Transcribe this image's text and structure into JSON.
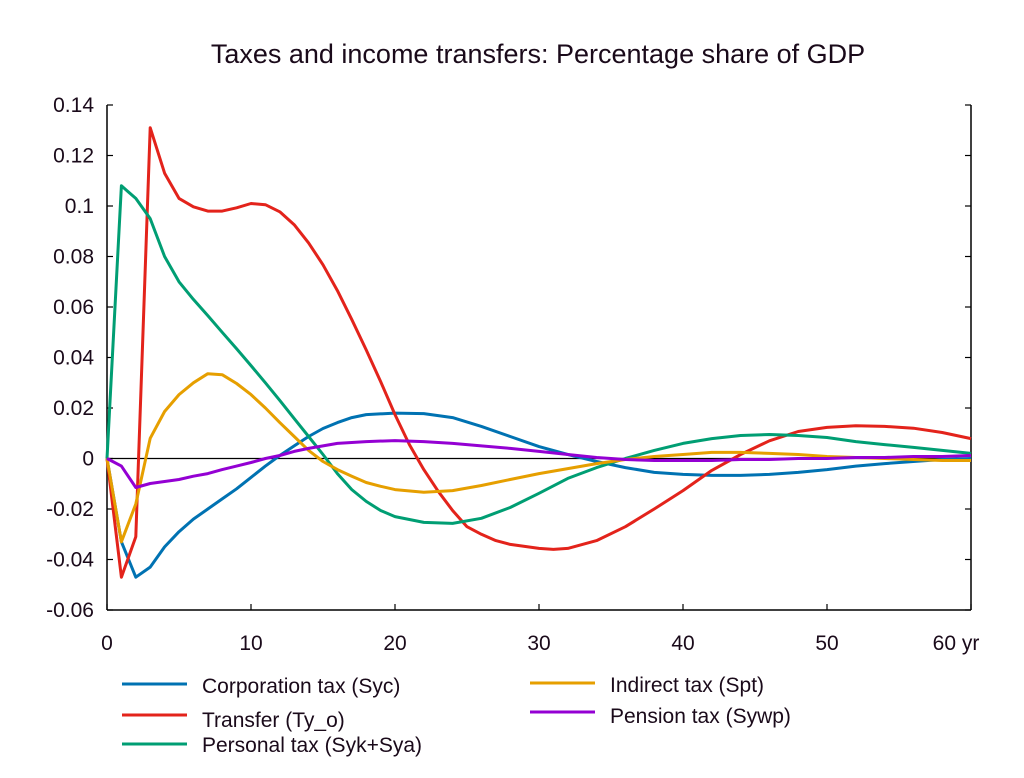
{
  "chart_data": {
    "type": "line",
    "title": "Taxes and income transfers: Percentage share of GDP",
    "xlabel": "",
    "ylabel": "",
    "xlim": [
      0,
      60
    ],
    "ylim": [
      -0.06,
      0.14
    ],
    "x_ticks": [
      0,
      10,
      20,
      30,
      40,
      50,
      60
    ],
    "x_tick_labels": [
      "0",
      "10",
      "20",
      "30",
      "40",
      "50",
      "60 yr"
    ],
    "y_ticks": [
      -0.06,
      -0.04,
      -0.02,
      0,
      0.02,
      0.04,
      0.06,
      0.08,
      0.1,
      0.12,
      0.14
    ],
    "y_tick_labels": [
      "-0.06",
      "-0.04",
      "-0.02",
      "0",
      "0.02",
      "0.04",
      "0.06",
      "0.08",
      "0.1",
      "0.12",
      "0.14"
    ],
    "grid": false,
    "zero_line": true,
    "legend_position": "bottom",
    "series": [
      {
        "name": "Corporation tax (Syc)",
        "color": "#0072b2",
        "x": [
          0,
          1,
          2,
          3,
          4,
          5,
          6,
          7,
          8,
          9,
          10,
          11,
          12,
          13,
          14,
          15,
          16,
          17,
          18,
          20,
          22,
          24,
          26,
          28,
          30,
          32,
          34,
          36,
          38,
          40,
          42,
          44,
          46,
          48,
          50,
          52,
          54,
          56,
          58,
          60
        ],
        "y": [
          0,
          -0.033,
          -0.047,
          -0.043,
          -0.035,
          -0.029,
          -0.024,
          -0.02,
          -0.016,
          -0.012,
          -0.0075,
          -0.003,
          0.0012,
          0.005,
          0.0087,
          0.0119,
          0.0142,
          0.0162,
          0.0174,
          0.018,
          0.0178,
          0.0162,
          0.0127,
          0.0087,
          0.0047,
          0.0016,
          -0.0012,
          -0.0036,
          -0.0055,
          -0.0063,
          -0.0067,
          -0.0067,
          -0.0063,
          -0.0055,
          -0.0044,
          -0.003,
          -0.002,
          -0.0012,
          -0.0004,
          0
        ]
      },
      {
        "name": "Transfer (Ty_o)",
        "color": "#e3231b",
        "x": [
          0,
          1,
          2,
          3,
          4,
          5,
          6,
          7,
          8,
          9,
          10,
          11,
          12,
          13,
          14,
          15,
          16,
          17,
          18,
          19,
          20,
          21,
          22,
          23,
          24,
          25,
          26,
          27,
          28,
          30,
          31,
          32,
          34,
          36,
          38,
          40,
          42,
          44,
          46,
          48,
          50,
          52,
          54,
          56,
          58,
          60
        ],
        "y": [
          0,
          -0.047,
          -0.031,
          0.131,
          0.113,
          0.103,
          0.0997,
          0.098,
          0.098,
          0.0993,
          0.101,
          0.1005,
          0.0977,
          0.0926,
          0.0854,
          0.0767,
          0.0665,
          0.055,
          0.043,
          0.0305,
          0.0174,
          0.0055,
          -0.0044,
          -0.013,
          -0.0206,
          -0.027,
          -0.03,
          -0.0325,
          -0.034,
          -0.0356,
          -0.036,
          -0.0356,
          -0.0325,
          -0.027,
          -0.02,
          -0.0127,
          -0.0047,
          0.0016,
          0.007,
          0.0107,
          0.0123,
          0.013,
          0.0127,
          0.012,
          0.0103,
          0.0079
        ]
      },
      {
        "name": "Personal tax (Syk+Sya)",
        "color": "#009e73",
        "x": [
          0,
          1,
          2,
          3,
          4,
          5,
          6,
          7,
          8,
          9,
          10,
          11,
          12,
          13,
          14,
          15,
          16,
          17,
          18,
          19,
          20,
          22,
          24,
          26,
          28,
          30,
          32,
          34,
          36,
          38,
          40,
          42,
          44,
          46,
          48,
          50,
          52,
          54,
          56,
          58,
          60
        ],
        "y": [
          0,
          0.108,
          0.103,
          0.095,
          0.08,
          0.07,
          0.063,
          0.0566,
          0.05,
          0.0435,
          0.0368,
          0.03,
          0.023,
          0.0158,
          0.0087,
          0.0016,
          -0.006,
          -0.0123,
          -0.017,
          -0.0206,
          -0.023,
          -0.0253,
          -0.0257,
          -0.0237,
          -0.0194,
          -0.0138,
          -0.0079,
          -0.0036,
          0,
          0.0032,
          0.006,
          0.0079,
          0.0091,
          0.0095,
          0.0091,
          0.0083,
          0.0067,
          0.0055,
          0.0044,
          0.0032,
          0.002
        ]
      },
      {
        "name": "Indirect tax (Spt)",
        "color": "#e69f00",
        "x": [
          0,
          1,
          2,
          3,
          4,
          5,
          6,
          7,
          8,
          9,
          10,
          11,
          12,
          13,
          14,
          15,
          16,
          17,
          18,
          19,
          20,
          22,
          24,
          26,
          28,
          30,
          32,
          34,
          36,
          38,
          40,
          42,
          44,
          46,
          48,
          50,
          52,
          54,
          56,
          58,
          60
        ],
        "y": [
          0,
          -0.033,
          -0.018,
          0.008,
          0.0186,
          0.0253,
          0.03,
          0.0336,
          0.0332,
          0.0297,
          0.0253,
          0.02,
          0.0142,
          0.0087,
          0.0032,
          -0.0012,
          -0.0044,
          -0.007,
          -0.0095,
          -0.011,
          -0.0123,
          -0.0134,
          -0.0127,
          -0.0107,
          -0.0083,
          -0.006,
          -0.004,
          -0.002,
          -0.0004,
          0.0008,
          0.0016,
          0.0024,
          0.0024,
          0.002,
          0.0016,
          0.0008,
          0.0004,
          0,
          -0.0004,
          -0.0008,
          -0.0008
        ]
      },
      {
        "name": "Pension tax (Sywp)",
        "color": "#9400d3",
        "x": [
          0,
          1,
          2,
          3,
          4,
          5,
          6,
          7,
          8,
          9,
          10,
          11,
          12,
          13,
          14,
          15,
          16,
          18,
          20,
          22,
          24,
          26,
          28,
          30,
          32,
          34,
          36,
          38,
          40,
          42,
          44,
          46,
          48,
          50,
          52,
          54,
          56,
          58,
          60
        ],
        "y": [
          0,
          -0.003,
          -0.0115,
          -0.0099,
          -0.0091,
          -0.0083,
          -0.007,
          -0.006,
          -0.0044,
          -0.003,
          -0.0016,
          0,
          0.0012,
          0.0028,
          0.004,
          0.005,
          0.006,
          0.0067,
          0.0071,
          0.0067,
          0.006,
          0.005,
          0.004,
          0.0028,
          0.0016,
          0.0004,
          -0.0004,
          -0.0008,
          -0.0008,
          -0.0008,
          -0.0004,
          -0.0004,
          0,
          0,
          0.0004,
          0.0004,
          0.0008,
          0.0008,
          0.0012
        ]
      }
    ],
    "legend_order": [
      {
        "series": 0,
        "column": 0,
        "row": 0
      },
      {
        "series": 3,
        "column": 1,
        "row": 0
      },
      {
        "series": 1,
        "column": 0,
        "row": 1
      },
      {
        "series": 4,
        "column": 1,
        "row": 1
      },
      {
        "series": 2,
        "column": 0,
        "row": 2
      }
    ]
  }
}
